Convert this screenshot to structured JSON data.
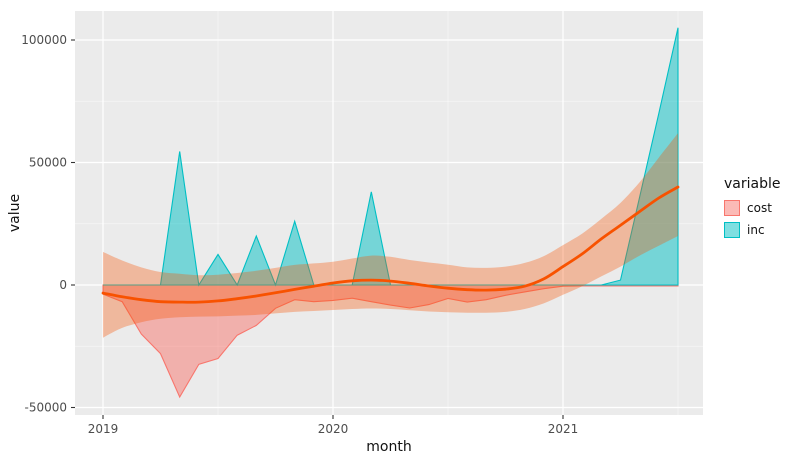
{
  "chart_data": {
    "type": "area",
    "title": "",
    "xlabel": "month",
    "ylabel": "value",
    "categories": [
      "2019-01",
      "2019-02",
      "2019-03",
      "2019-04",
      "2019-05",
      "2019-06",
      "2019-07",
      "2019-08",
      "2019-09",
      "2019-10",
      "2019-11",
      "2019-12",
      "2020-01",
      "2020-02",
      "2020-03",
      "2020-04",
      "2020-05",
      "2020-06",
      "2020-07",
      "2020-08",
      "2020-09",
      "2020-10",
      "2020-11",
      "2020-12",
      "2021-01",
      "2021-02",
      "2021-03",
      "2021-04",
      "2021-05",
      "2021-06",
      "2021-07"
    ],
    "series": [
      {
        "name": "cost",
        "values": [
          -3700,
          -6800,
          -20000,
          -28000,
          -45700,
          -32400,
          -30000,
          -20500,
          -16500,
          -9500,
          -6000,
          -6800,
          -6300,
          -5400,
          -6800,
          -8200,
          -9400,
          -8000,
          -5500,
          -7000,
          -6000,
          -4200,
          -2800,
          -1500,
          -500,
          -400,
          -400,
          -400,
          -400,
          -400,
          -400
        ]
      },
      {
        "name": "inc",
        "values": [
          0,
          0,
          0,
          0,
          54500,
          0,
          12500,
          0,
          20000,
          0,
          26000,
          0,
          0,
          0,
          38000,
          0,
          0,
          0,
          0,
          0,
          0,
          0,
          0,
          0,
          0,
          0,
          0,
          2000,
          36000,
          70000,
          105000
        ]
      }
    ],
    "smooth_trend": {
      "name": "loess-smooth",
      "values": [
        -3300,
        -4800,
        -6000,
        -6800,
        -7000,
        -7000,
        -6500,
        -5600,
        -4500,
        -3200,
        -1800,
        -500,
        800,
        1700,
        2000,
        1600,
        700,
        -400,
        -1300,
        -1900,
        -2100,
        -1700,
        -500,
        2500,
        7500,
        12700,
        18800,
        24400,
        30000,
        35500,
        40000
      ],
      "upper": [
        13500,
        10000,
        7200,
        5300,
        4600,
        4000,
        4200,
        4900,
        5800,
        7000,
        8200,
        8800,
        9500,
        10800,
        12000,
        11500,
        10200,
        9200,
        8300,
        7200,
        7000,
        7500,
        9000,
        11800,
        16300,
        21000,
        27000,
        33500,
        42000,
        52000,
        62000
      ],
      "lower": [
        -21500,
        -17500,
        -15200,
        -13800,
        -13200,
        -12900,
        -12800,
        -12500,
        -12200,
        -11600,
        -11000,
        -10600,
        -10200,
        -9800,
        -9600,
        -9800,
        -10300,
        -10800,
        -11100,
        -11300,
        -11300,
        -11000,
        -9800,
        -7500,
        -4000,
        -500,
        3500,
        7500,
        12000,
        16000,
        20000
      ]
    },
    "y_ticks": [
      {
        "label": "-50000",
        "value": -50000
      },
      {
        "label": "0",
        "value": 0
      },
      {
        "label": "50000",
        "value": 50000
      },
      {
        "label": "100000",
        "value": 100000
      }
    ],
    "y_minor_values": [
      -25000,
      25000,
      75000
    ],
    "x_ticks": [
      {
        "label": "2019",
        "index": 0
      },
      {
        "label": "2020",
        "index": 12
      },
      {
        "label": "2021",
        "index": 24
      }
    ],
    "x_minor_indices": [
      6,
      18,
      30
    ],
    "ylim": [
      -53000,
      112200
    ],
    "grid": "on",
    "legend": {
      "title": "variable",
      "position": "right",
      "entries": [
        {
          "label": "cost",
          "color": "#F8766D"
        },
        {
          "label": "inc",
          "color": "#00BFC4"
        }
      ]
    },
    "colors": {
      "cost_stroke": "#F8766D",
      "cost_fill": "rgba(248,118,109,0.5)",
      "inc_stroke": "#00BFC4",
      "inc_fill": "rgba(0,191,196,0.5)",
      "smooth_line": "#F85200",
      "ribbon_fill": "rgba(250,82,0,0.33)",
      "panel_bg": "#EBEBEB",
      "grid_major": "#FFFFFF",
      "grid_minor": "rgba(255,255,255,0.6)",
      "axis_text": "#4D4D4D",
      "tick_mark": "#333333"
    }
  }
}
